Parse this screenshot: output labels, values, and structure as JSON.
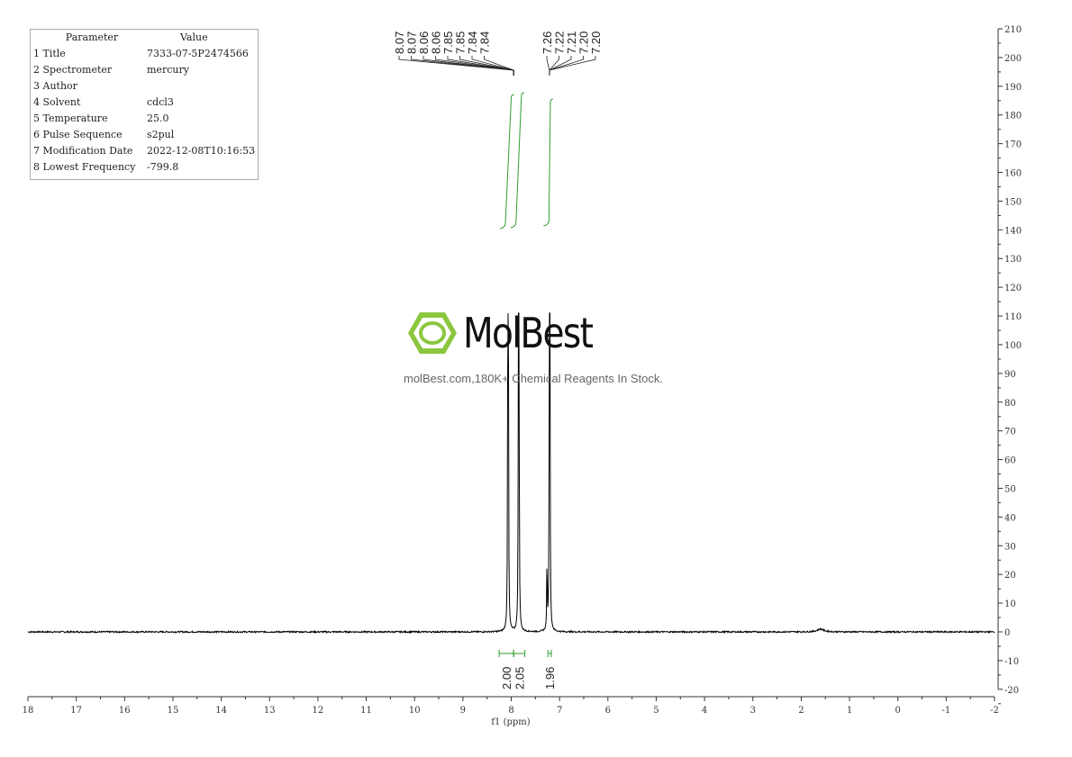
{
  "parameters": {
    "header": {
      "key": "Parameter",
      "value": "Value"
    },
    "rows": [
      {
        "key": "1 Title",
        "value": "7333-07-5P2474566"
      },
      {
        "key": "2 Spectrometer",
        "value": "mercury"
      },
      {
        "key": "3 Author",
        "value": ""
      },
      {
        "key": "4 Solvent",
        "value": "cdcl3"
      },
      {
        "key": "5 Temperature",
        "value": "25.0"
      },
      {
        "key": "6 Pulse Sequence",
        "value": "s2pul"
      },
      {
        "key": "7 Modification Date",
        "value": "2022-12-08T10:16:53"
      },
      {
        "key": "8 Lowest Frequency",
        "value": "-799.8"
      }
    ]
  },
  "logo": {
    "text": "MolBest",
    "watermark": "molBest.com,180K+ Chemical Reagents In Stock."
  },
  "chart_data": {
    "type": "line",
    "xlabel": "f1 (ppm)",
    "xlim": [
      18,
      -2
    ],
    "ylim": [
      -20,
      210
    ],
    "x_ticks": [
      18,
      17,
      16,
      15,
      14,
      13,
      12,
      11,
      10,
      9,
      8,
      7,
      6,
      5,
      4,
      3,
      2,
      1,
      0,
      -1,
      -2
    ],
    "y_ticks": [
      -20,
      -10,
      0,
      10,
      20,
      30,
      40,
      50,
      60,
      70,
      80,
      90,
      100,
      110,
      120,
      130,
      140,
      150,
      160,
      170,
      180,
      190,
      200,
      210
    ],
    "peak_labels_group1": [
      "8.07",
      "8.07",
      "8.06",
      "8.06",
      "7.85",
      "7.85",
      "7.84",
      "7.84"
    ],
    "peak_labels_group2": [
      "7.26",
      "7.22",
      "7.21",
      "7.20",
      "7.20"
    ],
    "peaks": [
      {
        "ppm": 8.07,
        "height": 111
      },
      {
        "ppm": 8.06,
        "height": 111
      },
      {
        "ppm": 7.85,
        "height": 111
      },
      {
        "ppm": 7.84,
        "height": 111
      },
      {
        "ppm": 7.26,
        "height": 27
      },
      {
        "ppm": 7.21,
        "height": 111
      },
      {
        "ppm": 7.2,
        "height": 111
      },
      {
        "ppm": 1.6,
        "height": 1
      }
    ],
    "integrals": [
      {
        "from": 8.25,
        "to": 7.95,
        "value": "2.00"
      },
      {
        "from": 7.95,
        "to": 7.72,
        "value": "2.05"
      },
      {
        "from": 7.24,
        "to": 7.17,
        "value": "1.96"
      }
    ],
    "colors": {
      "spectrum": "#000000",
      "integral": "#2e9e2e",
      "logo": "#8cc63f"
    }
  }
}
